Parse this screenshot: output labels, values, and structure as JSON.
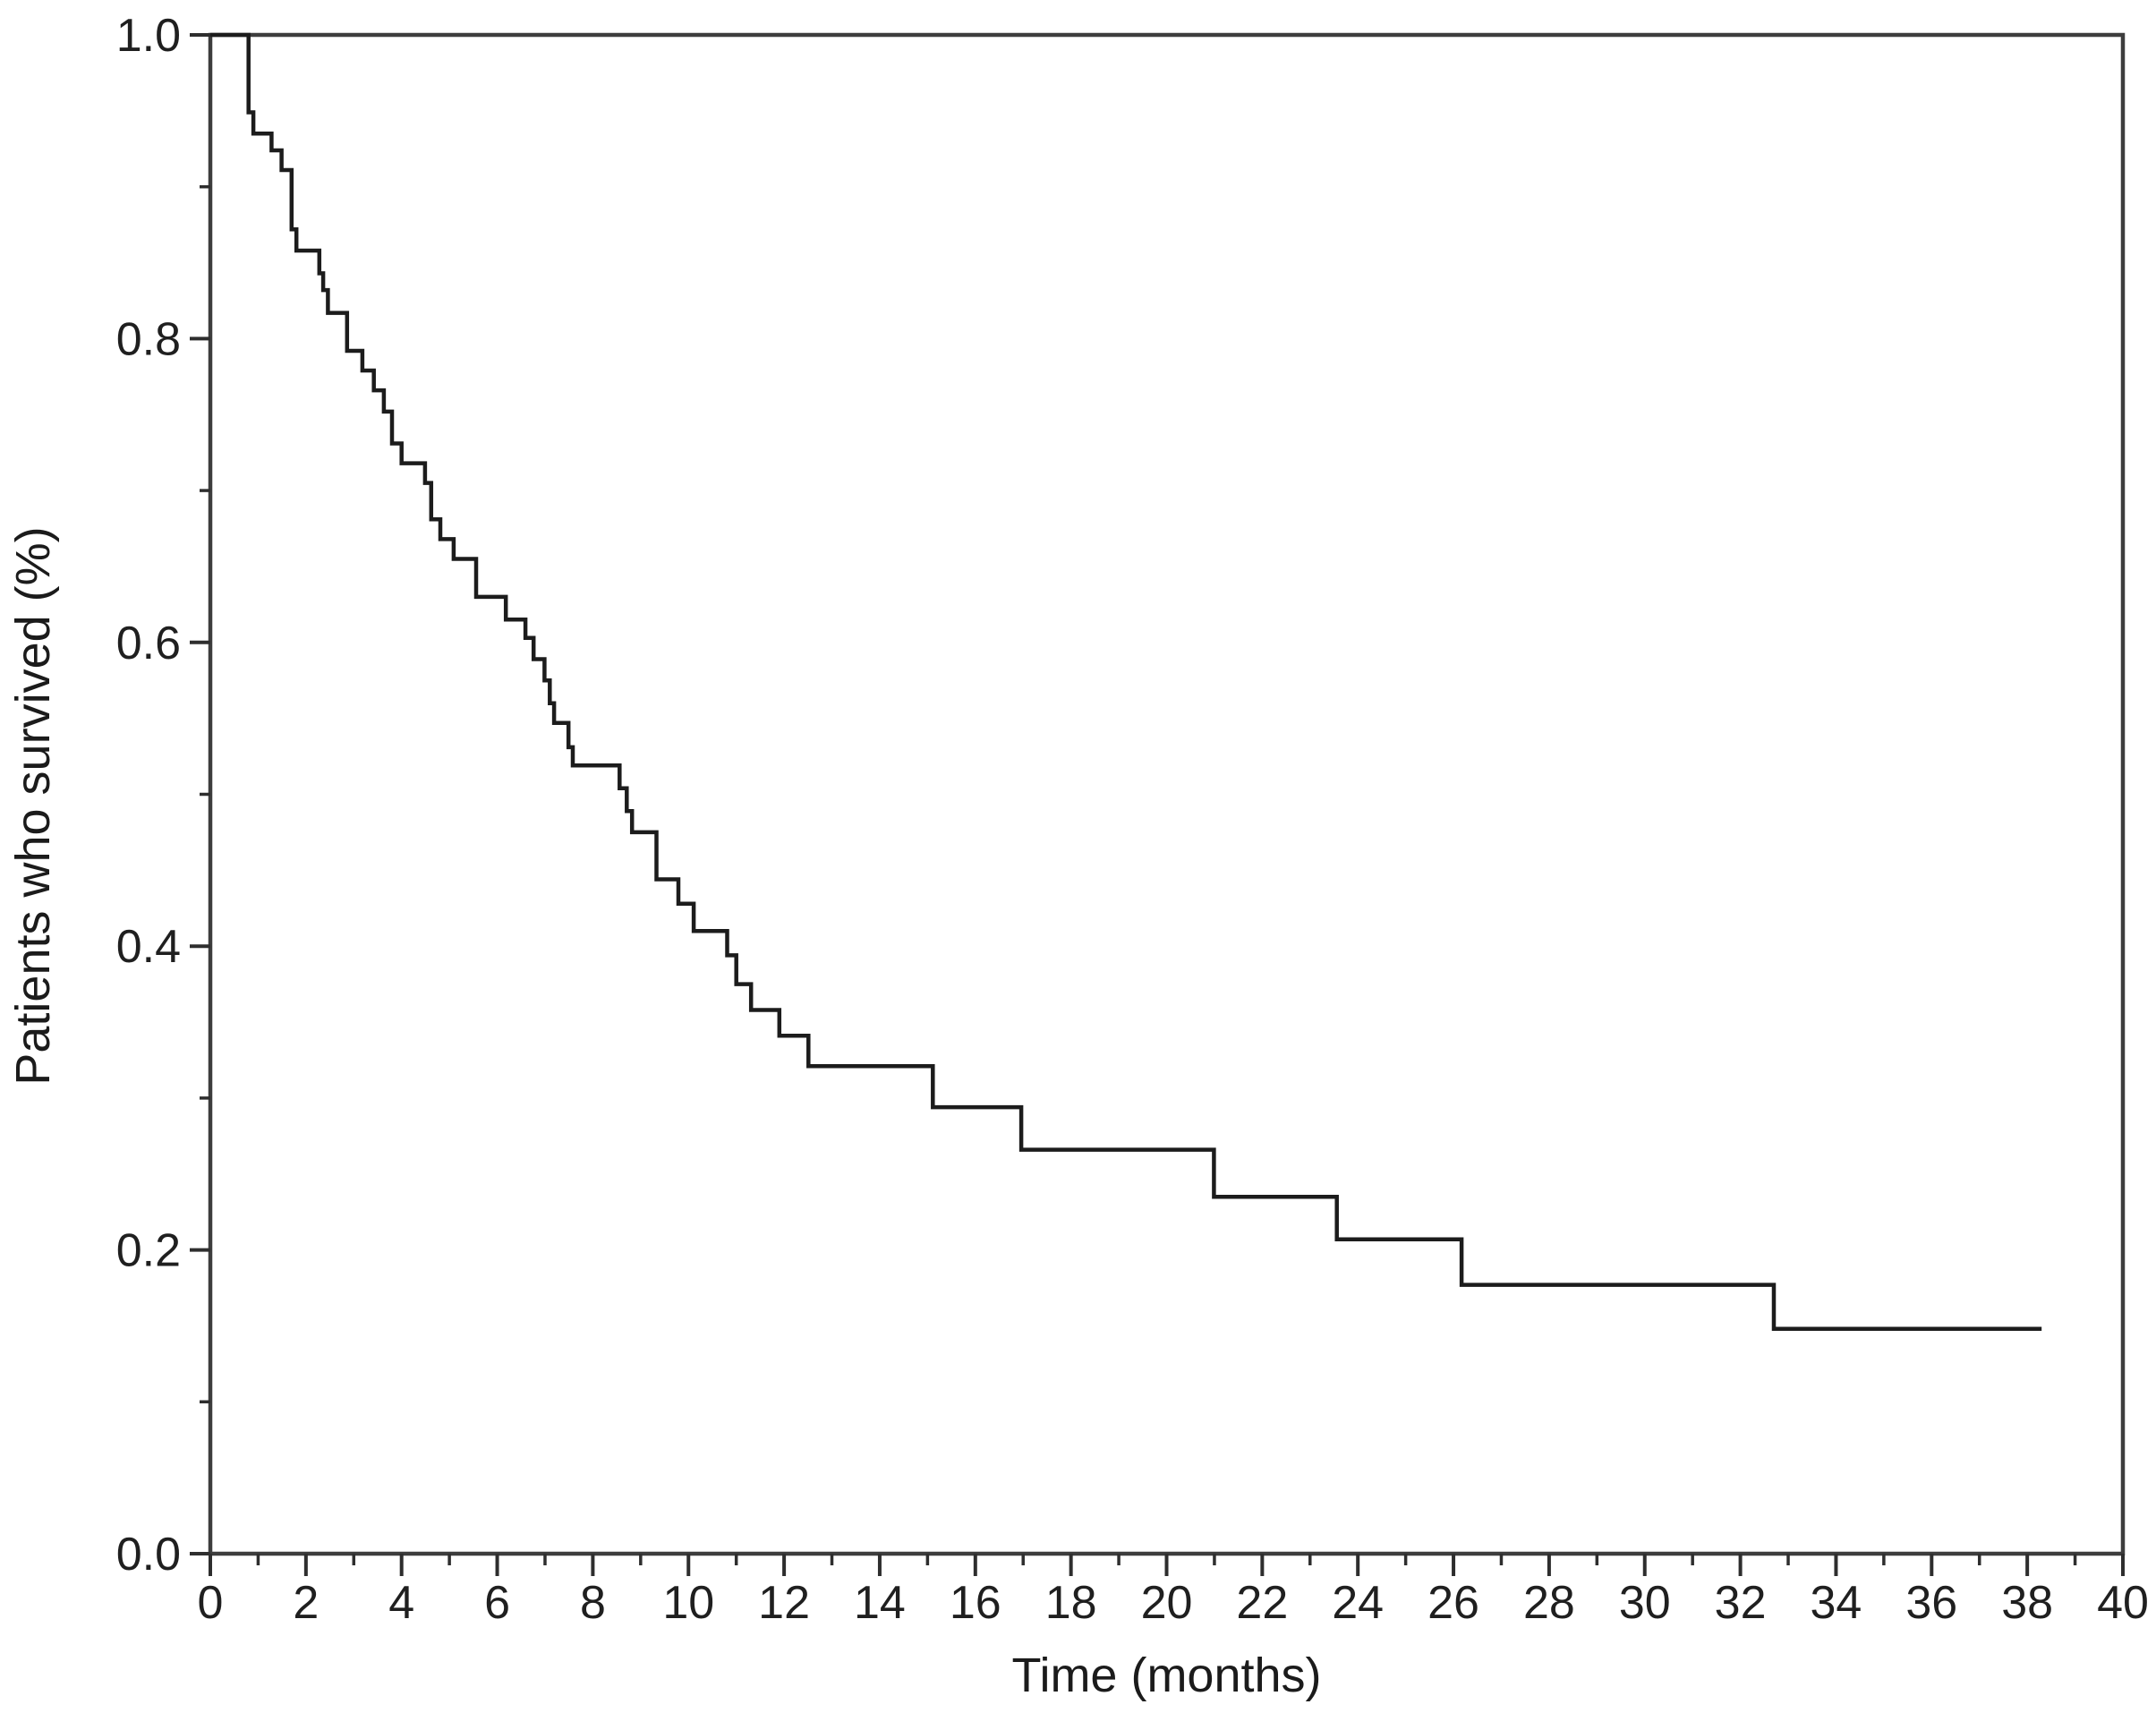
{
  "figure": {
    "background": "#ffffff",
    "frame_color": "#3d3d3d",
    "tick_color": "#2e2e2e",
    "label_color": "#1f1f1f"
  },
  "chart_data": {
    "type": "line",
    "subtype": "kaplan-meier-step-curve",
    "title": "",
    "xlabel": "Time (months)",
    "ylabel": "Patients who survived (%)",
    "xlim": [
      0,
      40
    ],
    "ylim": [
      0.0,
      1.0
    ],
    "grid": false,
    "legend": null,
    "x_major_ticks": [
      0,
      2,
      4,
      6,
      8,
      10,
      12,
      14,
      16,
      18,
      20,
      22,
      24,
      26,
      28,
      30,
      32,
      34,
      36,
      38,
      40
    ],
    "x_major_tick_labels": [
      "0",
      "2",
      "4",
      "6",
      "8",
      "10",
      "12",
      "14",
      "16",
      "18",
      "20",
      "22",
      "24",
      "26",
      "28",
      "30",
      "32",
      "34",
      "36",
      "38",
      "40"
    ],
    "x_minor_ticks": [
      1,
      3,
      5,
      7,
      9,
      11,
      13,
      15,
      17,
      19,
      21,
      23,
      25,
      27,
      29,
      31,
      33,
      35,
      37,
      39
    ],
    "y_major_ticks": [
      0.0,
      0.2,
      0.4,
      0.6,
      0.8,
      1.0
    ],
    "y_major_tick_labels": [
      "0.0",
      "0.2",
      "0.4",
      "0.6",
      "0.8",
      "1.0"
    ],
    "y_minor_ticks": [
      0.1,
      0.3,
      0.5,
      0.7,
      0.9
    ],
    "series": [
      {
        "name": "Patients who survived",
        "color": "#1c1c1c",
        "start": [
          0,
          1.0
        ],
        "end_x": 38.3,
        "steps": [
          [
            0.8,
            0.949
          ],
          [
            0.9,
            0.935
          ],
          [
            1.28,
            0.924
          ],
          [
            1.49,
            0.911
          ],
          [
            1.7,
            0.872
          ],
          [
            1.8,
            0.858
          ],
          [
            2.28,
            0.843
          ],
          [
            2.36,
            0.832
          ],
          [
            2.46,
            0.817
          ],
          [
            2.86,
            0.792
          ],
          [
            3.18,
            0.779
          ],
          [
            3.42,
            0.766
          ],
          [
            3.63,
            0.752
          ],
          [
            3.8,
            0.731
          ],
          [
            4.0,
            0.718
          ],
          [
            4.49,
            0.705
          ],
          [
            4.62,
            0.681
          ],
          [
            4.81,
            0.668
          ],
          [
            5.09,
            0.655
          ],
          [
            5.56,
            0.63
          ],
          [
            6.18,
            0.615
          ],
          [
            6.59,
            0.603
          ],
          [
            6.76,
            0.589
          ],
          [
            6.99,
            0.575
          ],
          [
            7.1,
            0.56
          ],
          [
            7.19,
            0.547
          ],
          [
            7.49,
            0.531
          ],
          [
            7.58,
            0.519
          ],
          [
            8.56,
            0.504
          ],
          [
            8.71,
            0.489
          ],
          [
            8.82,
            0.475
          ],
          [
            9.33,
            0.444
          ],
          [
            9.79,
            0.428
          ],
          [
            10.11,
            0.41
          ],
          [
            10.81,
            0.394
          ],
          [
            11.0,
            0.375
          ],
          [
            11.31,
            0.358
          ],
          [
            11.9,
            0.341
          ],
          [
            12.51,
            0.321
          ],
          [
            15.11,
            0.294
          ],
          [
            16.96,
            0.266
          ],
          [
            20.99,
            0.235
          ],
          [
            23.56,
            0.207
          ],
          [
            26.17,
            0.177
          ],
          [
            32.7,
            0.148
          ]
        ]
      }
    ]
  }
}
